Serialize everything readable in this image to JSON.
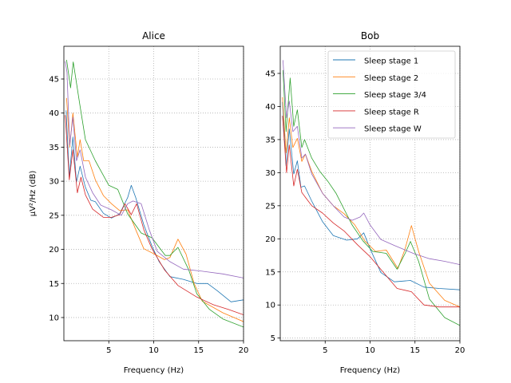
{
  "chart_data": [
    {
      "type": "line",
      "title": "Alice",
      "xlabel": "Frequency (Hz)",
      "ylabel": "µV²/Hz (dB)",
      "xlim": [
        0,
        20
      ],
      "ylim": [
        6.6,
        49.8
      ],
      "xticks": [
        5,
        10,
        15,
        20
      ],
      "yticks": [
        10,
        15,
        20,
        25,
        30,
        35,
        40,
        45
      ],
      "grid": true,
      "series": [
        {
          "name": "Sleep stage 1",
          "color": "#1f77b4",
          "points": [
            [
              0.25,
              40.4
            ],
            [
              0.6,
              30.6
            ],
            [
              1,
              36.5
            ],
            [
              1.4,
              29.9
            ],
            [
              1.8,
              32.2
            ],
            [
              2.4,
              29.1
            ],
            [
              3,
              27.2
            ],
            [
              3.5,
              27
            ],
            [
              4.4,
              25.3
            ],
            [
              5.3,
              24.6
            ],
            [
              6.2,
              25.2
            ],
            [
              7.1,
              27.6
            ],
            [
              7.5,
              29.4
            ],
            [
              8,
              27.6
            ],
            [
              8.9,
              23.6
            ],
            [
              9.8,
              20.5
            ],
            [
              10.6,
              18.2
            ],
            [
              11.8,
              16
            ],
            [
              13.3,
              15.6
            ],
            [
              14.8,
              15
            ],
            [
              16,
              15
            ],
            [
              17.1,
              13.9
            ],
            [
              18.6,
              12.3
            ],
            [
              20,
              12.6
            ]
          ]
        },
        {
          "name": "Sleep stage 2",
          "color": "#ff7f0e",
          "points": [
            [
              0.3,
              42.2
            ],
            [
              0.65,
              35
            ],
            [
              1,
              40
            ],
            [
              1.5,
              33.5
            ],
            [
              1.8,
              36.1
            ],
            [
              2.2,
              33
            ],
            [
              2.8,
              33
            ],
            [
              3.5,
              30.2
            ],
            [
              4.4,
              27.9
            ],
            [
              5.3,
              26.7
            ],
            [
              6.2,
              25.7
            ],
            [
              7.1,
              25.8
            ],
            [
              8,
              22.9
            ],
            [
              8.9,
              20.1
            ],
            [
              10.1,
              19.3
            ],
            [
              11.2,
              18.5
            ],
            [
              11.8,
              18.8
            ],
            [
              12.7,
              21.5
            ],
            [
              13.6,
              19.3
            ],
            [
              14.5,
              15
            ],
            [
              15.4,
              12.4
            ],
            [
              17.7,
              10.7
            ],
            [
              20,
              9.4
            ]
          ]
        },
        {
          "name": "Sleep stage 3/4",
          "color": "#2ca02c",
          "points": [
            [
              0.3,
              47.8
            ],
            [
              0.75,
              43.7
            ],
            [
              1.04,
              47.5
            ],
            [
              1.8,
              41
            ],
            [
              2.4,
              36.1
            ],
            [
              3.5,
              33
            ],
            [
              5,
              29.4
            ],
            [
              6,
              28.8
            ],
            [
              7.1,
              25.2
            ],
            [
              8.6,
              22.4
            ],
            [
              9.8,
              21.7
            ],
            [
              11.3,
              19.1
            ],
            [
              11.8,
              19.1
            ],
            [
              12.7,
              20.3
            ],
            [
              13.9,
              17
            ],
            [
              14.8,
              13.5
            ],
            [
              16.2,
              11.2
            ],
            [
              17.7,
              9.8
            ],
            [
              20,
              8.6
            ]
          ]
        },
        {
          "name": "Sleep stage R",
          "color": "#d62728",
          "points": [
            [
              0.15,
              39.7
            ],
            [
              0.6,
              30.2
            ],
            [
              1,
              34.6
            ],
            [
              1.5,
              28.3
            ],
            [
              1.9,
              30.6
            ],
            [
              2.4,
              28
            ],
            [
              3.2,
              25.9
            ],
            [
              4.4,
              24.7
            ],
            [
              5.3,
              24.7
            ],
            [
              6.2,
              25.1
            ],
            [
              6.8,
              26.7
            ],
            [
              7.5,
              25.1
            ],
            [
              8.1,
              26.7
            ],
            [
              8.9,
              22.9
            ],
            [
              9.8,
              20.1
            ],
            [
              11.2,
              17
            ],
            [
              12.7,
              14.7
            ],
            [
              14.8,
              13
            ],
            [
              16.6,
              11.9
            ],
            [
              18.3,
              11.2
            ],
            [
              20,
              10.4
            ]
          ]
        },
        {
          "name": "Sleep stage W",
          "color": "#9467bd",
          "points": [
            [
              0.15,
              47.6
            ],
            [
              0.35,
              46
            ],
            [
              0.65,
              35.3
            ],
            [
              1,
              39.4
            ],
            [
              1.4,
              33
            ],
            [
              1.8,
              34.6
            ],
            [
              2.4,
              30.6
            ],
            [
              3.2,
              28.3
            ],
            [
              4.1,
              26.5
            ],
            [
              5.3,
              25.8
            ],
            [
              6.4,
              25
            ],
            [
              7.1,
              26.7
            ],
            [
              7.7,
              27.1
            ],
            [
              8.6,
              26.7
            ],
            [
              9.5,
              22.9
            ],
            [
              10.4,
              19.7
            ],
            [
              11.8,
              18.2
            ],
            [
              13.3,
              17.1
            ],
            [
              15.4,
              16.8
            ],
            [
              17.7,
              16.4
            ],
            [
              20,
              15.8
            ]
          ]
        }
      ]
    },
    {
      "type": "line",
      "title": "Bob",
      "xlabel": "Frequency (Hz)",
      "ylabel": "",
      "xlim": [
        0,
        20
      ],
      "ylim": [
        4.6,
        49.1
      ],
      "xticks": [
        5,
        10,
        15,
        20
      ],
      "yticks": [
        5,
        10,
        15,
        20,
        25,
        30,
        35,
        40,
        45
      ],
      "grid": true,
      "legend": "top-right",
      "series": [
        {
          "name": "Sleep stage 1",
          "color": "#1f77b4",
          "points": [
            [
              0.25,
              40.7
            ],
            [
              0.65,
              31
            ],
            [
              1,
              36.6
            ],
            [
              1.5,
              29.8
            ],
            [
              1.9,
              31.8
            ],
            [
              2.3,
              27.8
            ],
            [
              2.7,
              28
            ],
            [
              3.5,
              25.7
            ],
            [
              4.7,
              22.6
            ],
            [
              5.9,
              20.5
            ],
            [
              7.4,
              19.8
            ],
            [
              8.6,
              20
            ],
            [
              9.3,
              20.9
            ],
            [
              10,
              18.5
            ],
            [
              11.2,
              14.9
            ],
            [
              12.7,
              13.5
            ],
            [
              14.5,
              13.7
            ],
            [
              16,
              12.7
            ],
            [
              17.7,
              12.5
            ],
            [
              20,
              12.3
            ]
          ]
        },
        {
          "name": "Sleep stage 2",
          "color": "#ff7f0e",
          "points": [
            [
              0.25,
              41.4
            ],
            [
              0.65,
              33
            ],
            [
              1,
              38.3
            ],
            [
              1.4,
              33.8
            ],
            [
              1.9,
              35.2
            ],
            [
              2.4,
              31.7
            ],
            [
              2.8,
              32.8
            ],
            [
              3.5,
              30.2
            ],
            [
              4.7,
              26.9
            ],
            [
              5.9,
              25
            ],
            [
              7.1,
              23.8
            ],
            [
              8.3,
              22.1
            ],
            [
              9.4,
              19.7
            ],
            [
              10.6,
              18.1
            ],
            [
              11.8,
              18.3
            ],
            [
              13.1,
              15.5
            ],
            [
              13.9,
              18.5
            ],
            [
              14.6,
              22
            ],
            [
              15.4,
              18.1
            ],
            [
              16.6,
              13.3
            ],
            [
              18.3,
              10.7
            ],
            [
              20,
              9.7
            ]
          ]
        },
        {
          "name": "Sleep stage 3/4",
          "color": "#2ca02c",
          "points": [
            [
              0.3,
              45.5
            ],
            [
              0.65,
              36.2
            ],
            [
              1.1,
              44.3
            ],
            [
              1.5,
              37
            ],
            [
              1.9,
              39.5
            ],
            [
              2.4,
              33.8
            ],
            [
              2.7,
              35
            ],
            [
              3.5,
              32.2
            ],
            [
              4.4,
              30.2
            ],
            [
              5.3,
              28.7
            ],
            [
              6.2,
              26.9
            ],
            [
              7.1,
              24.5
            ],
            [
              8,
              22.1
            ],
            [
              9.2,
              19.7
            ],
            [
              10.3,
              18.1
            ],
            [
              11.8,
              17.8
            ],
            [
              13,
              15.4
            ],
            [
              13.9,
              17.8
            ],
            [
              14.5,
              19.6
            ],
            [
              15.4,
              16.6
            ],
            [
              16.6,
              10.9
            ],
            [
              18.3,
              8.1
            ],
            [
              20,
              6.9
            ]
          ]
        },
        {
          "name": "Sleep stage R",
          "color": "#d62728",
          "points": [
            [
              0.25,
              38.6
            ],
            [
              0.7,
              30
            ],
            [
              1,
              34.2
            ],
            [
              1.5,
              28
            ],
            [
              1.9,
              30.5
            ],
            [
              2.4,
              27
            ],
            [
              3.5,
              25
            ],
            [
              4.7,
              23.9
            ],
            [
              5.9,
              22.4
            ],
            [
              7.1,
              21.2
            ],
            [
              8.6,
              19.1
            ],
            [
              10,
              17.3
            ],
            [
              11.5,
              14.9
            ],
            [
              13,
              12.5
            ],
            [
              14.6,
              12
            ],
            [
              16,
              10
            ],
            [
              17.7,
              9.7
            ],
            [
              20,
              9.7
            ]
          ]
        },
        {
          "name": "Sleep stage W",
          "color": "#9467bd",
          "points": [
            [
              0.3,
              47
            ],
            [
              0.7,
              38.3
            ],
            [
              1,
              40.8
            ],
            [
              1.4,
              36.2
            ],
            [
              1.9,
              37
            ],
            [
              2.4,
              32.2
            ],
            [
              2.8,
              32.8
            ],
            [
              3.5,
              29.8
            ],
            [
              4.7,
              26.9
            ],
            [
              5.9,
              25
            ],
            [
              7.1,
              23.3
            ],
            [
              8,
              22.8
            ],
            [
              8.9,
              23.3
            ],
            [
              9.3,
              23.9
            ],
            [
              10,
              22.1
            ],
            [
              11.2,
              19.9
            ],
            [
              12.7,
              19
            ],
            [
              14.8,
              17.8
            ],
            [
              16.6,
              17
            ],
            [
              18.3,
              16.6
            ],
            [
              20,
              16.1
            ]
          ]
        }
      ]
    }
  ]
}
